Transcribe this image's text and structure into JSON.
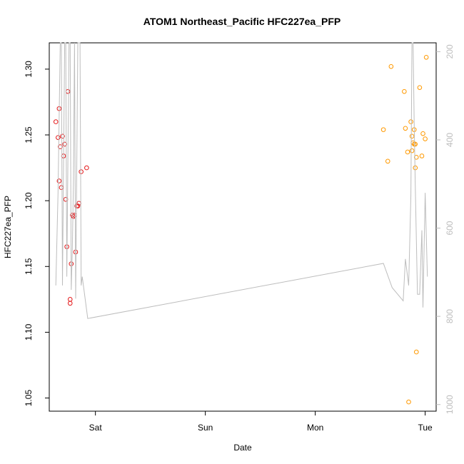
{
  "chart_data": {
    "type": "scatter",
    "title": "ATOM1 Northeast_Pacific HFC227ea_PFP",
    "xlabel": "Date",
    "ylabel": "HFC227ea_PFP",
    "x_unit": "days",
    "x_ticks": [
      {
        "label": "Sat",
        "value": 1.0
      },
      {
        "label": "Sun",
        "value": 2.0
      },
      {
        "label": "Mon",
        "value": 3.0
      },
      {
        "label": "Tue",
        "value": 4.0
      }
    ],
    "xlim": [
      0.58,
      4.1
    ],
    "ylim": [
      1.04,
      1.32
    ],
    "y_ticks": [
      1.05,
      1.1,
      1.15,
      1.2,
      1.25,
      1.3
    ],
    "right_axis": {
      "ticks": [
        200,
        400,
        600,
        800,
        1000
      ],
      "lim": [
        180,
        1015
      ],
      "reversed": true,
      "color": "#bdbdbd"
    },
    "grid": false,
    "series": [
      {
        "color": "#e41a1c",
        "marker": "open-circle",
        "points": [
          [
            0.64,
            1.26
          ],
          [
            0.66,
            1.248
          ],
          [
            0.67,
            1.27
          ],
          [
            0.68,
            1.241
          ],
          [
            0.7,
            1.249
          ],
          [
            0.71,
            1.234
          ],
          [
            0.72,
            1.243
          ],
          [
            0.73,
            1.201
          ],
          [
            0.74,
            1.165
          ],
          [
            0.75,
            1.283
          ],
          [
            0.77,
            1.122
          ],
          [
            0.77,
            1.125
          ],
          [
            0.78,
            1.152
          ],
          [
            0.79,
            1.189
          ],
          [
            0.8,
            1.188
          ],
          [
            0.81,
            1.189
          ],
          [
            0.82,
            1.161
          ],
          [
            0.83,
            1.196
          ],
          [
            0.84,
            1.196
          ],
          [
            0.85,
            1.198
          ],
          [
            0.87,
            1.222
          ],
          [
            0.92,
            1.225
          ],
          [
            0.67,
            1.215
          ],
          [
            0.69,
            1.21
          ]
        ]
      },
      {
        "color": "#ff9900",
        "marker": "open-circle",
        "points": [
          [
            3.62,
            1.254
          ],
          [
            3.66,
            1.23
          ],
          [
            3.69,
            1.302
          ],
          [
            3.81,
            1.283
          ],
          [
            3.82,
            1.255
          ],
          [
            3.84,
            1.237
          ],
          [
            3.85,
            1.047
          ],
          [
            3.87,
            1.26
          ],
          [
            3.88,
            1.238
          ],
          [
            3.88,
            1.249
          ],
          [
            3.89,
            1.244
          ],
          [
            3.9,
            1.254
          ],
          [
            3.9,
            1.243
          ],
          [
            3.91,
            1.243
          ],
          [
            3.91,
            1.225
          ],
          [
            3.92,
            1.085
          ],
          [
            3.92,
            1.233
          ],
          [
            3.95,
            1.286
          ],
          [
            3.97,
            1.234
          ],
          [
            3.98,
            1.251
          ],
          [
            4.0,
            1.247
          ],
          [
            4.01,
            1.309
          ]
        ]
      },
      {
        "color": "#bdbdbd",
        "marker": "line",
        "axis": "right",
        "points": [
          [
            0.64,
            730
          ],
          [
            0.66,
            520
          ],
          [
            0.68,
            160
          ],
          [
            0.69,
            160
          ],
          [
            0.7,
            730
          ],
          [
            0.72,
            160
          ],
          [
            0.73,
            160
          ],
          [
            0.74,
            710
          ],
          [
            0.76,
            160
          ],
          [
            0.77,
            160
          ],
          [
            0.78,
            740
          ],
          [
            0.79,
            650
          ],
          [
            0.8,
            490
          ],
          [
            0.81,
            180
          ],
          [
            0.82,
            760
          ],
          [
            0.84,
            160
          ],
          [
            0.86,
            160
          ],
          [
            0.87,
            730
          ],
          [
            0.88,
            710
          ],
          [
            0.93,
            805
          ],
          [
            3.62,
            680
          ],
          [
            3.7,
            735
          ],
          [
            3.8,
            765
          ],
          [
            3.82,
            670
          ],
          [
            3.85,
            730
          ],
          [
            3.87,
            525
          ],
          [
            3.88,
            160
          ],
          [
            3.89,
            160
          ],
          [
            3.9,
            360
          ],
          [
            3.91,
            500
          ],
          [
            3.93,
            750
          ],
          [
            3.95,
            750
          ],
          [
            3.97,
            605
          ],
          [
            3.98,
            780
          ],
          [
            4.0,
            520
          ],
          [
            4.02,
            710
          ]
        ]
      }
    ]
  }
}
